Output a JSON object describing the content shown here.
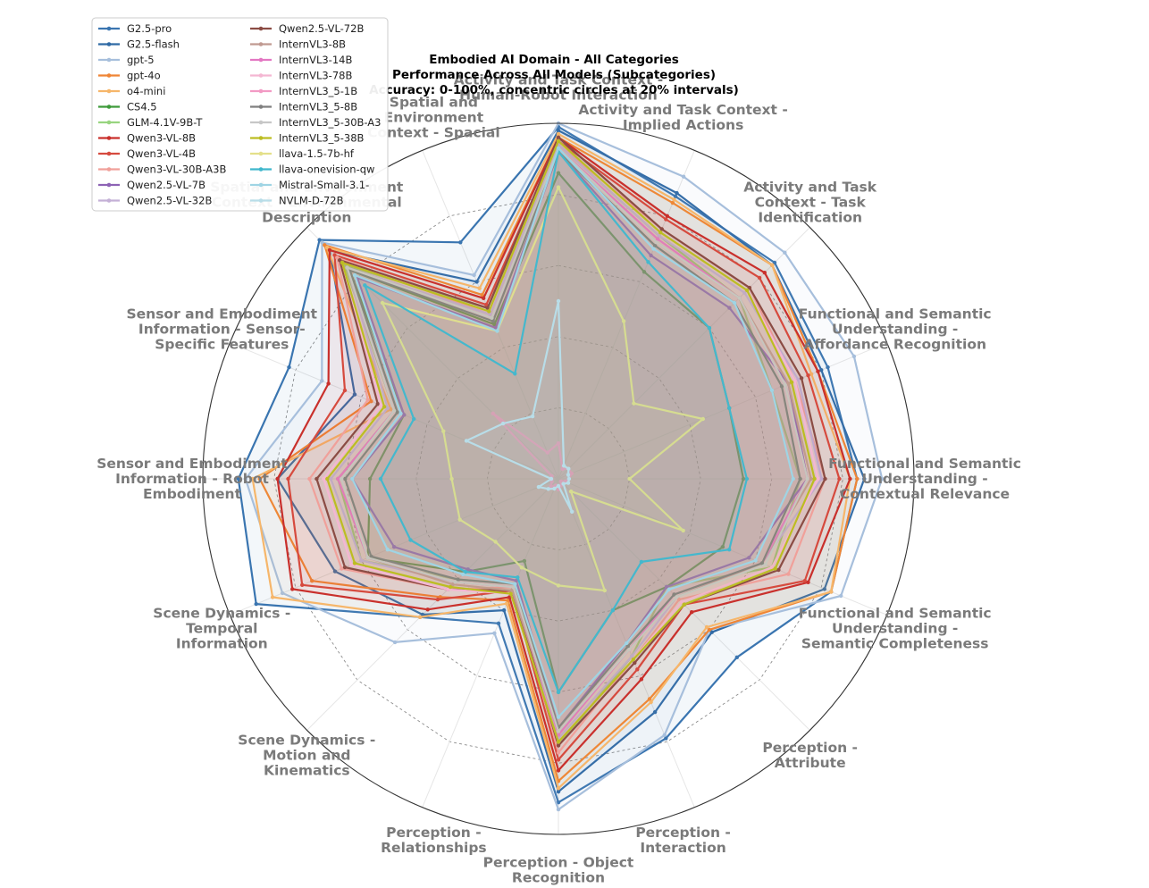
{
  "chart_data": {
    "type": "radar",
    "title_lines": [
      "Embodied AI Domain - All Categories",
      "Performance Across All Models (Subcategories)",
      "Accuracy: 0-100%, concentric circles at 20% intervals)"
    ],
    "range": [
      0,
      100
    ],
    "grid_step": 20,
    "axes": [
      {
        "label": [
          "Activity and Task Context -",
          "Human-Robot Interaction"
        ]
      },
      {
        "label": [
          "Activity and Task Context -",
          "Implied Actions"
        ]
      },
      {
        "label": [
          "Activity and Task",
          "Context - Task",
          "Identification"
        ]
      },
      {
        "label": [
          "Functional and Semantic",
          "Understanding -",
          "Affordance Recognition"
        ]
      },
      {
        "label": [
          "Functional and Semantic",
          "Understanding -",
          "Contextual Relevance"
        ]
      },
      {
        "label": [
          "Functional and Semantic",
          "Understanding -",
          "Semantic Completeness"
        ]
      },
      {
        "label": [
          "Perception -",
          "Attribute"
        ]
      },
      {
        "label": [
          "Perception -",
          "Interaction"
        ]
      },
      {
        "label": [
          "Perception - Object",
          "Recognition"
        ]
      },
      {
        "label": [
          "Perception -",
          "Relationships"
        ]
      },
      {
        "label": [
          "Scene Dynamics -",
          "Motion and",
          "Kinematics"
        ]
      },
      {
        "label": [
          "Scene Dynamics -",
          "Temporal",
          "Information"
        ]
      },
      {
        "label": [
          "Sensor and Embodiment",
          "Information - Robot",
          "Embodiment"
        ]
      },
      {
        "label": [
          "Sensor and Embodiment",
          "Information - Sensor-",
          "Specific Features"
        ]
      },
      {
        "label": [
          "Spatial and Environment",
          "Context - Environmental",
          "Description"
        ]
      },
      {
        "label": [
          "Spatial and",
          "Environment",
          "Context - Spacial"
        ]
      }
    ],
    "series": [
      {
        "name": "G2.5-pro",
        "color": "#3a75b0",
        "values": [
          99,
          86,
          86,
          82,
          84,
          83,
          71,
          79,
          91,
          44,
          55,
          92,
          90,
          82,
          95,
          72
        ]
      },
      {
        "name": "G2.5-flash",
        "color": "#2f6aa5",
        "values": [
          98,
          87,
          85,
          80,
          86,
          81,
          61,
          71,
          88,
          40,
          54,
          68,
          79,
          62,
          91,
          60
        ]
      },
      {
        "name": "gpt-5",
        "color": "#a7bfdc",
        "values": [
          100,
          92,
          90,
          90,
          91,
          86,
          60,
          78,
          93,
          47,
          65,
          84,
          88,
          72,
          94,
          62
        ]
      },
      {
        "name": "gpt-4o",
        "color": "#ef8535",
        "values": [
          96,
          84,
          85,
          79,
          84,
          83,
          60,
          67,
          85,
          37,
          47,
          75,
          84,
          57,
          93,
          56
        ]
      },
      {
        "name": "o4-mini",
        "color": "#f6b66a",
        "values": [
          97,
          85,
          85,
          77,
          82,
          83,
          59,
          68,
          87,
          38,
          55,
          87,
          86,
          51,
          92,
          58
        ]
      },
      {
        "name": "CS4.5",
        "color": "#3e9b3a",
        "values": [
          86,
          63,
          60,
          52,
          52,
          50,
          43,
          40,
          60,
          25,
          37,
          58,
          53,
          47,
          83,
          47
        ]
      },
      {
        "name": "GLM-4.1V-9B-T",
        "color": "#98d47f",
        "values": [
          94,
          74,
          72,
          65,
          68,
          65,
          43,
          54,
          75,
          32,
          40,
          60,
          62,
          50,
          85,
          52
        ]
      },
      {
        "name": "Qwen3-VL-8B",
        "color": "#c9302c",
        "values": [
          96,
          80,
          82,
          79,
          82,
          76,
          53,
          61,
          82,
          36,
          52,
          81,
          79,
          70,
          91,
          55
        ]
      },
      {
        "name": "Qwen3-VL-4B",
        "color": "#d64a3e",
        "values": [
          95,
          79,
          80,
          76,
          79,
          75,
          50,
          58,
          79,
          34,
          48,
          78,
          76,
          65,
          89,
          53
        ]
      },
      {
        "name": "Qwen3-VL-30B-A3B",
        "color": "#f0a09a",
        "values": [
          94,
          76,
          76,
          72,
          75,
          70,
          48,
          55,
          77,
          33,
          44,
          66,
          70,
          58,
          88,
          50
        ]
      },
      {
        "name": "Qwen2.5-VL-7B",
        "color": "#8d63b5",
        "values": [
          92,
          68,
          68,
          70,
          70,
          58,
          43,
          50,
          70,
          31,
          36,
          50,
          58,
          47,
          80,
          46
        ]
      },
      {
        "name": "Qwen2.5-VL-32B",
        "color": "#c4b0d6",
        "values": [
          94,
          74,
          74,
          73,
          74,
          62,
          47,
          54,
          73,
          33,
          41,
          60,
          64,
          52,
          84,
          50
        ]
      },
      {
        "name": "Qwen2.5-VL-72B",
        "color": "#8b4c44",
        "values": [
          96,
          76,
          76,
          74,
          75,
          67,
          50,
          56,
          75,
          34,
          44,
          65,
          68,
          55,
          87,
          52
        ]
      },
      {
        "name": "InternVL3-8B",
        "color": "#c09a91",
        "values": [
          93,
          72,
          72,
          70,
          71,
          62,
          47,
          52,
          71,
          34,
          42,
          58,
          62,
          50,
          84,
          49
        ]
      },
      {
        "name": "InternVL3-14B",
        "color": "#e377c2",
        "values": [
          93,
          73,
          72,
          69,
          70,
          62,
          46,
          52,
          72,
          33,
          41,
          58,
          62,
          50,
          84,
          49
        ]
      },
      {
        "name": "InternVL3-78B",
        "color": "#f4b6d2",
        "values": [
          95,
          75,
          75,
          72,
          73,
          65,
          49,
          55,
          74,
          35,
          44,
          63,
          66,
          54,
          86,
          51
        ]
      },
      {
        "name": "InternVL3_5-1B",
        "color": "#f29ac4",
        "values": [
          10,
          3,
          4,
          4,
          3,
          2,
          1,
          2,
          3,
          2,
          3,
          2,
          2,
          2,
          26,
          8
        ]
      },
      {
        "name": "InternVL3_5-8B",
        "color": "#7f7f7f",
        "values": [
          92,
          71,
          70,
          68,
          68,
          62,
          46,
          51,
          70,
          32,
          40,
          57,
          60,
          49,
          83,
          48
        ]
      },
      {
        "name": "InternVL3_5-30B-A3",
        "color": "#c7c7c7",
        "values": [
          93,
          72,
          72,
          69,
          70,
          63,
          47,
          52,
          71,
          33,
          41,
          58,
          61,
          50,
          84,
          49
        ]
      },
      {
        "name": "InternVL3_5-38B",
        "color": "#bcbd22",
        "values": [
          95,
          75,
          75,
          71,
          72,
          66,
          50,
          55,
          74,
          35,
          43,
          62,
          65,
          53,
          86,
          51
        ]
      },
      {
        "name": "llava-1.5-7b-hf",
        "color": "#e4e08a",
        "values": [
          82,
          48,
          30,
          44,
          20,
          38,
          5,
          34,
          30,
          27,
          25,
          30,
          30,
          35,
          70,
          45
        ]
      },
      {
        "name": "llava-onevision-qw",
        "color": "#3fb7cc",
        "values": [
          92,
          66,
          60,
          52,
          53,
          52,
          33,
          40,
          60,
          30,
          37,
          45,
          50,
          44,
          77,
          32
        ]
      },
      {
        "name": "Mistral-Small-3.1-",
        "color": "#9fd4e4",
        "values": [
          93,
          70,
          70,
          65,
          66,
          60,
          44,
          50,
          67,
          32,
          38,
          52,
          58,
          48,
          81,
          45
        ]
      },
      {
        "name": "NVLM-D-72B",
        "color": "#b8dde8",
        "values": [
          50,
          4,
          4,
          3,
          3,
          3,
          2,
          10,
          2,
          3,
          4,
          6,
          2,
          28,
          22,
          19
        ]
      }
    ]
  }
}
